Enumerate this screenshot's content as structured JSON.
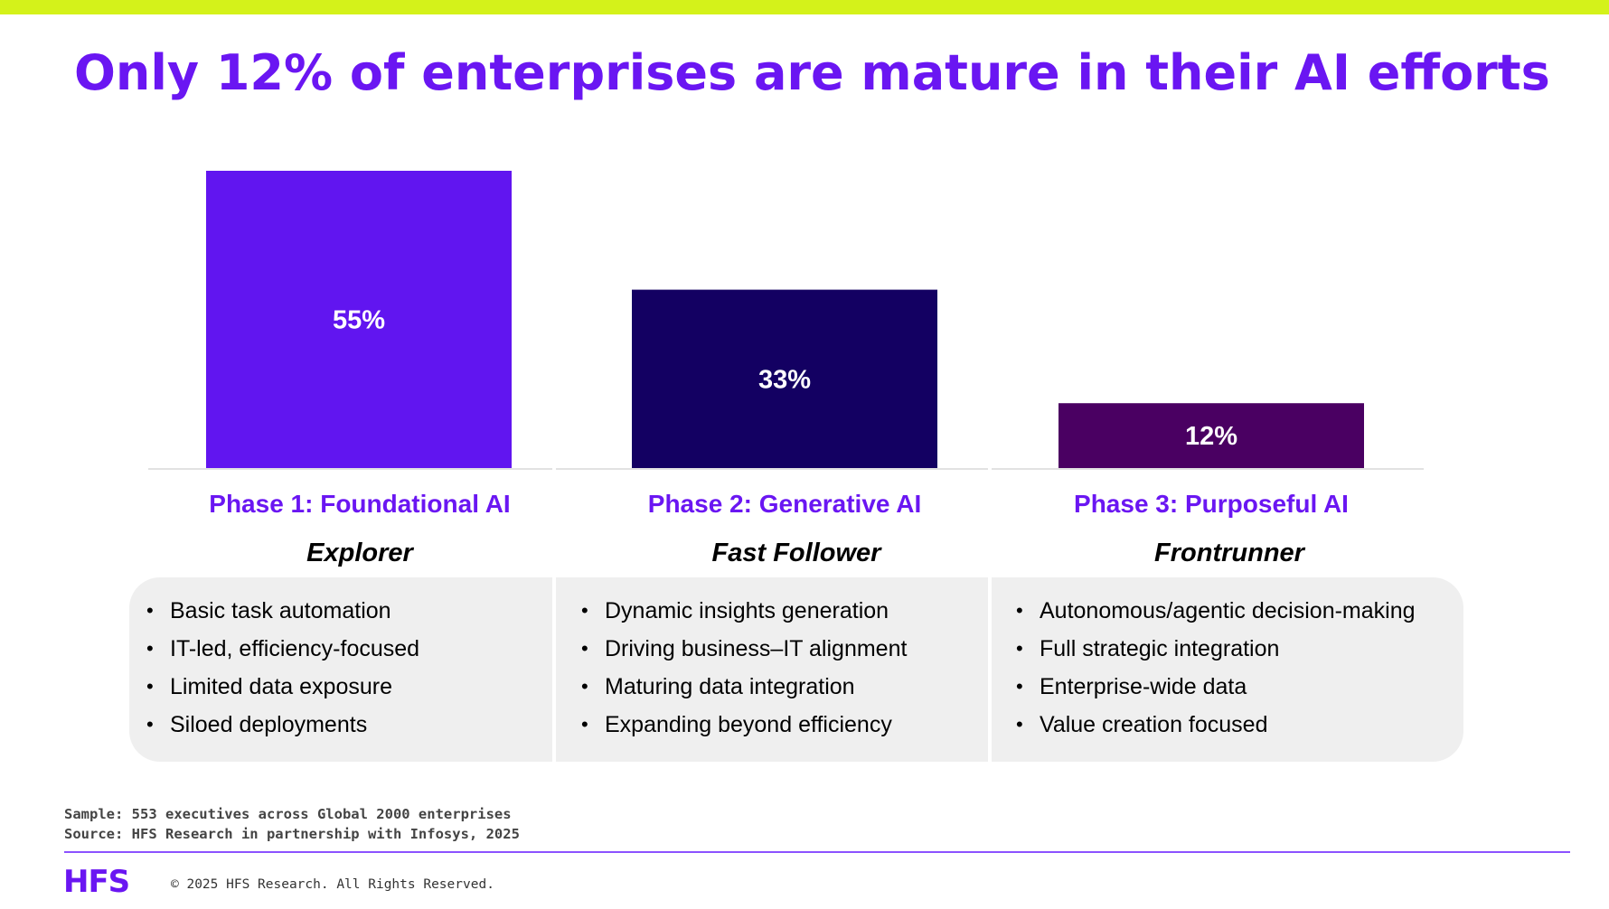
{
  "colors": {
    "accent_lime": "#d4f21a",
    "title_purple": "#6a16f2",
    "bar_phase1": "#6115f0",
    "bar_phase2": "#130062",
    "bar_phase3": "#4a0062",
    "axis_line": "#d9d9d9",
    "card_bg": "#efefef",
    "footer_rule": "#8c52ff"
  },
  "title": "Only 12% of enterprises are mature in their AI efforts",
  "chart_data": {
    "type": "bar",
    "categories": [
      "Phase 1: Foundational AI",
      "Phase 2: Generative AI",
      "Phase 3: Purposeful AI"
    ],
    "values": [
      55,
      33,
      12
    ],
    "value_labels": [
      "55%",
      "33%",
      "12%"
    ],
    "unit": "%",
    "ylim": [
      0,
      55
    ],
    "grid": false,
    "legend": "none",
    "title": "",
    "xlabel": "",
    "ylabel": ""
  },
  "columns": [
    {
      "phase": "Phase 1: Foundational AI",
      "persona": "Explorer",
      "bullets": [
        "Basic task automation",
        "IT-led, efficiency-focused",
        "Limited data exposure",
        "Siloed deployments"
      ]
    },
    {
      "phase": "Phase 2: Generative AI",
      "persona": "Fast Follower",
      "bullets": [
        "Dynamic insights generation",
        "Driving business–IT alignment",
        "Maturing data integration",
        "Expanding beyond efficiency"
      ]
    },
    {
      "phase": "Phase 3: Purposeful AI",
      "persona": "Frontrunner",
      "bullets": [
        "Autonomous/agentic decision-making",
        "Full strategic integration",
        "Enterprise-wide data",
        "Value creation focused"
      ]
    }
  ],
  "footnotes": {
    "sample": "Sample: 553 executives across Global 2000 enterprises",
    "source": "Source: HFS Research in partnership with Infosys, 2025"
  },
  "footer": {
    "logo": "HFS",
    "copyright": "© 2025 HFS Research. All Rights Reserved."
  }
}
